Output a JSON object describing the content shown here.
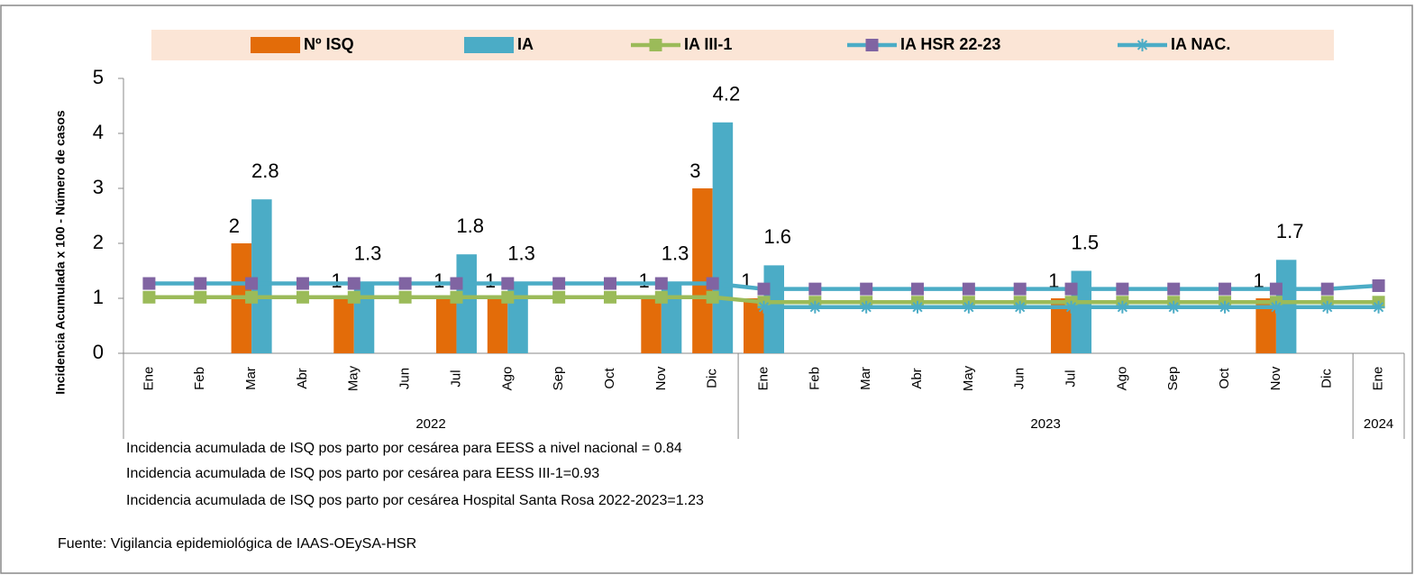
{
  "chart_data": {
    "type": "bar_line",
    "y_label": "Incidencia Acumulada x 100 - Número de casos",
    "categories": [
      "Ene",
      "Feb",
      "Mar",
      "Abr",
      "May",
      "Jun",
      "Jul",
      "Ago",
      "Sep",
      "Oct",
      "Nov",
      "Dic",
      "Ene",
      "Feb",
      "Mar",
      "Abr",
      "May",
      "Jun",
      "Jul",
      "Ago",
      "Sep",
      "Oct",
      "Nov",
      "Dic",
      "Ene"
    ],
    "x_groups": [
      "2022",
      "2022",
      "2022",
      "2022",
      "2022",
      "2022",
      "2022",
      "2022",
      "2022",
      "2022",
      "2022",
      "2022",
      "2023",
      "2023",
      "2023",
      "2023",
      "2023",
      "2023",
      "2023",
      "2023",
      "2023",
      "2023",
      "2023",
      "2023",
      "2024"
    ],
    "ylim": [
      0,
      5
    ],
    "yticks": [
      0,
      1,
      2,
      3,
      4,
      5
    ],
    "legend": "top",
    "series": [
      {
        "name": "Nº ISQ",
        "kind": "bar",
        "color": "#E36C09",
        "values": [
          null,
          null,
          2,
          null,
          1,
          null,
          1,
          1,
          null,
          null,
          1,
          3,
          1,
          null,
          null,
          null,
          null,
          null,
          1,
          null,
          null,
          null,
          1,
          null,
          null
        ]
      },
      {
        "name": "IA",
        "kind": "bar",
        "color": "#4BACC6",
        "values": [
          null,
          null,
          2.8,
          null,
          1.3,
          null,
          1.8,
          1.3,
          null,
          null,
          1.3,
          4.2,
          1.6,
          null,
          null,
          null,
          null,
          null,
          1.5,
          null,
          null,
          null,
          1.7,
          null,
          null
        ]
      },
      {
        "name": "IA III-1",
        "kind": "line",
        "color": "#9BBB59",
        "marker": "square",
        "marker_color": "#9BBB59",
        "values": [
          1.02,
          1.02,
          1.02,
          1.02,
          1.02,
          1.02,
          1.02,
          1.02,
          1.02,
          1.02,
          1.02,
          1.02,
          0.93,
          0.93,
          0.93,
          0.93,
          0.93,
          0.93,
          0.93,
          0.93,
          0.93,
          0.93,
          0.93,
          0.93,
          0.93
        ]
      },
      {
        "name": "IA HSR 22-23",
        "kind": "line",
        "color": "#4BACC6",
        "marker": "square",
        "marker_color": "#8064A2",
        "values": [
          1.27,
          1.27,
          1.27,
          1.27,
          1.27,
          1.27,
          1.27,
          1.27,
          1.27,
          1.27,
          1.27,
          1.27,
          1.17,
          1.17,
          1.17,
          1.17,
          1.17,
          1.17,
          1.17,
          1.17,
          1.17,
          1.17,
          1.17,
          1.17,
          1.23
        ]
      },
      {
        "name": "IA NAC.",
        "kind": "line",
        "color": "#4BACC6",
        "marker": "star",
        "marker_color": "#4BACC6",
        "values": [
          null,
          null,
          null,
          null,
          null,
          null,
          null,
          null,
          null,
          null,
          null,
          null,
          0.84,
          0.84,
          0.84,
          0.84,
          0.84,
          0.84,
          0.84,
          0.84,
          0.84,
          0.84,
          0.84,
          0.84,
          0.84
        ]
      }
    ],
    "notes": [
      "Incidencia acumulada de ISQ pos parto por cesárea para EESS a nivel nacional = 0.84",
      "Incidencia acumulada de ISQ pos parto por cesárea para EESS III-1=0.93",
      "Incidencia acumulada de ISQ pos parto por cesárea Hospital Santa Rosa 2022-2023=1.23"
    ],
    "source": "Fuente: Vigilancia epidemiológica de IAAS-OEySA-HSR"
  }
}
